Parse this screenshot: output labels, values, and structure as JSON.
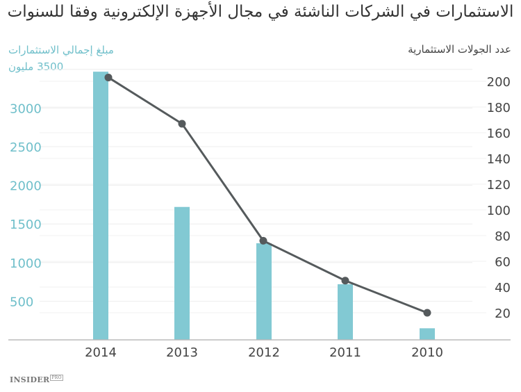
{
  "title": "الاستثمارات في الشركات الناشئة في مجال الأجهزة الإلكترونية وفقا للسنوات",
  "left_axis": {
    "label_line1": "مبلغ إجمالي الاستثمارات",
    "label_line2": "3500 مليون",
    "color": "#6fbfca"
  },
  "right_axis": {
    "label": "عدد الجولات الاستثمارية",
    "color": "#444444"
  },
  "footer": {
    "logo": "INSIDER",
    "logo_badge": "PRO"
  },
  "chart_data": {
    "type": "bar",
    "title": "الاستثمارات في الشركات الناشئة في مجال الأجهزة الإلكترونية وفقا للسنوات",
    "categories": [
      "2014",
      "2013",
      "2012",
      "2011",
      "2010"
    ],
    "series": [
      {
        "name": "مبلغ إجمالي الاستثمارات (مليون)",
        "type": "bar",
        "axis": "left",
        "color": "#82c9d3",
        "values": [
          3470,
          1720,
          1250,
          720,
          150
        ]
      },
      {
        "name": "عدد الجولات الاستثمارية",
        "type": "line",
        "axis": "right",
        "color": "#555a5c",
        "values": [
          203,
          167,
          76,
          45,
          20
        ]
      }
    ],
    "left_axis": {
      "ticks": [
        500,
        1000,
        1500,
        2000,
        2500,
        3000,
        3500
      ],
      "ylim": [
        0,
        3500
      ],
      "label": "مبلغ إجمالي الاستثمارات 3500 مليون"
    },
    "right_axis": {
      "ticks": [
        20,
        40,
        60,
        80,
        100,
        120,
        140,
        160,
        180,
        200
      ],
      "ylim": [
        0,
        210
      ],
      "label": "عدد الجولات الاستثمارية"
    },
    "xlabel": "",
    "grid": true,
    "legend": "none"
  }
}
